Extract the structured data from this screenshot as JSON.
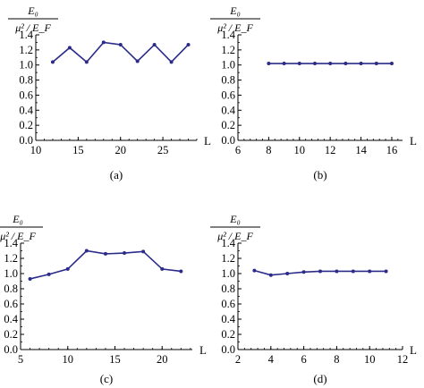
{
  "chart_data": [
    {
      "type": "line",
      "panel": "(a)",
      "ylabel_num": "E₀",
      "ylabel_den": "μ² / E_F",
      "xlabel": "L",
      "xticks": [
        10,
        15,
        20,
        25
      ],
      "yticks": [
        "0.0",
        "0.2",
        "0.4",
        "0.6",
        "0.8",
        "1.0",
        "1.2",
        "1.4"
      ],
      "xlim": [
        10,
        29
      ],
      "ylim": [
        0,
        1.4
      ],
      "series": [
        {
          "x": [
            12,
            14,
            16,
            18,
            20,
            22,
            24,
            26,
            28
          ],
          "y": [
            1.04,
            1.23,
            1.04,
            1.3,
            1.27,
            1.05,
            1.27,
            1.04,
            1.27
          ]
        }
      ]
    },
    {
      "type": "line",
      "panel": "(b)",
      "ylabel_num": "E₀",
      "ylabel_den": "μ² / E_F",
      "xlabel": "L",
      "xticks": [
        6,
        8,
        10,
        12,
        14,
        16
      ],
      "yticks": [
        "0.0",
        "0.2",
        "0.4",
        "0.6",
        "0.8",
        "1.0",
        "1.2",
        "1.4"
      ],
      "xlim": [
        6,
        16.7
      ],
      "ylim": [
        0,
        1.4
      ],
      "series": [
        {
          "x": [
            8,
            9,
            10,
            11,
            12,
            13,
            14,
            15,
            16
          ],
          "y": [
            1.02,
            1.02,
            1.02,
            1.02,
            1.02,
            1.02,
            1.02,
            1.02,
            1.02
          ]
        }
      ]
    },
    {
      "type": "line",
      "panel": "(c)",
      "ylabel_num": "E₀",
      "ylabel_den": "μ² / E_F",
      "xlabel": "L",
      "xticks": [
        5,
        10,
        15,
        20
      ],
      "yticks": [
        "0.0",
        "0.2",
        "0.4",
        "0.6",
        "0.8",
        "1.0",
        "1.2",
        "1.4"
      ],
      "xlim": [
        5,
        23.2
      ],
      "ylim": [
        0,
        1.4
      ],
      "series": [
        {
          "x": [
            6,
            8,
            10,
            12,
            14,
            16,
            18,
            20,
            22
          ],
          "y": [
            0.93,
            0.99,
            1.06,
            1.3,
            1.26,
            1.27,
            1.29,
            1.06,
            1.03
          ]
        }
      ]
    },
    {
      "type": "line",
      "panel": "(d)",
      "ylabel_num": "E₀",
      "ylabel_den": "μ² / E_F",
      "xlabel": "L",
      "xticks": [
        2,
        4,
        6,
        8,
        10,
        12
      ],
      "yticks": [
        "0.0",
        "0.2",
        "0.4",
        "0.6",
        "0.8",
        "1.0",
        "1.2",
        "1.4"
      ],
      "xlim": [
        2,
        12
      ],
      "ylim": [
        0,
        1.4
      ],
      "series": [
        {
          "x": [
            3,
            4,
            5,
            6,
            7,
            8,
            9,
            10,
            11
          ],
          "y": [
            1.04,
            0.98,
            1.0,
            1.02,
            1.03,
            1.03,
            1.03,
            1.03,
            1.03
          ]
        }
      ]
    }
  ],
  "colors": {
    "line": "#2b2b8a",
    "axis": "#000000"
  }
}
